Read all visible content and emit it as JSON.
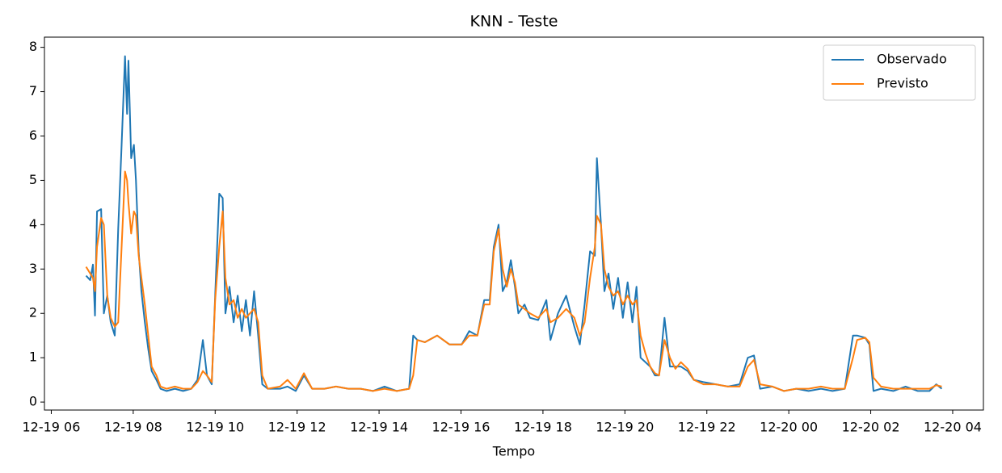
{
  "chart_data": {
    "type": "line",
    "title": "KNN - Teste",
    "xlabel": "Tempo",
    "x": [
      "12-19 06:51",
      "12-19 06:57",
      "12-19 07:01",
      "12-19 07:04",
      "12-19 07:07",
      "12-19 07:13",
      "12-19 07:17",
      "12-19 07:22",
      "12-19 07:27",
      "12-19 07:33",
      "12-19 07:38",
      "12-19 07:43",
      "12-19 07:48",
      "12-19 07:51",
      "12-19 07:53",
      "12-19 07:57",
      "12-19 08:01",
      "12-19 08:04",
      "12-19 08:08",
      "12-19 08:12",
      "12-19 08:17",
      "12-19 08:22",
      "12-19 08:27",
      "12-19 08:34",
      "12-19 08:40",
      "12-19 08:49",
      "12-19 09:01",
      "12-19 09:13",
      "12-19 09:25",
      "12-19 09:34",
      "12-19 09:42",
      "12-19 09:48",
      "12-19 09:55",
      "12-19 10:00",
      "12-19 10:06",
      "12-19 10:11",
      "12-19 10:15",
      "12-19 10:21",
      "12-19 10:27",
      "12-19 10:33",
      "12-19 10:39",
      "12-19 10:45",
      "12-19 10:51",
      "12-19 10:57",
      "12-19 11:03",
      "12-19 11:09",
      "12-19 11:17",
      "12-19 11:35",
      "12-19 11:46",
      "12-19 11:58",
      "12-19 12:10",
      "12-19 12:22",
      "12-19 12:40",
      "12-19 12:57",
      "12-19 13:15",
      "12-19 13:33",
      "12-19 13:51",
      "12-19 14:08",
      "12-19 14:26",
      "12-19 14:44",
      "12-19 14:50",
      "12-19 14:56",
      "12-19 15:07",
      "12-19 15:25",
      "12-19 15:43",
      "12-19 16:01",
      "12-19 16:12",
      "12-19 16:24",
      "12-19 16:34",
      "12-19 16:42",
      "12-19 16:48",
      "12-19 16:55",
      "12-19 17:01",
      "12-19 17:07",
      "12-19 17:13",
      "12-19 17:19",
      "12-19 17:24",
      "12-19 17:33",
      "12-19 17:41",
      "12-19 17:53",
      "12-19 18:05",
      "12-19 18:11",
      "12-19 18:22",
      "12-19 18:34",
      "12-19 18:46",
      "12-19 18:54",
      "12-19 19:01",
      "12-19 19:09",
      "12-19 19:16",
      "12-19 19:19",
      "12-19 19:25",
      "12-19 19:30",
      "12-19 19:36",
      "12-19 19:43",
      "12-19 19:50",
      "12-19 19:57",
      "12-19 20:04",
      "12-19 20:11",
      "12-19 20:17",
      "12-19 20:23",
      "12-19 20:30",
      "12-19 20:37",
      "12-19 20:44",
      "12-19 20:50",
      "12-19 20:58",
      "12-19 21:06",
      "12-19 21:14",
      "12-19 21:22",
      "12-19 21:32",
      "12-19 21:41",
      "12-19 21:55",
      "12-19 22:13",
      "12-19 22:31",
      "12-19 22:48",
      "12-19 23:00",
      "12-19 23:09",
      "12-19 23:18",
      "12-19 23:36",
      "12-19 23:53",
      "12-20 00:11",
      "12-20 00:29",
      "12-20 00:47",
      "12-20 01:04",
      "12-20 01:22",
      "12-20 01:34",
      "12-20 01:40",
      "12-20 01:52",
      "12-20 01:58",
      "12-20 02:04",
      "12-20 02:15",
      "12-20 02:33",
      "12-20 02:51",
      "12-20 03:09",
      "12-20 03:26",
      "12-20 03:36",
      "12-20 03:44"
    ],
    "series": [
      {
        "name": "Observado",
        "color": "#1f77b4",
        "values": [
          2.85,
          2.75,
          3.1,
          1.95,
          4.3,
          4.35,
          2.0,
          2.4,
          1.8,
          1.5,
          3.9,
          5.8,
          7.8,
          6.5,
          7.7,
          5.5,
          5.8,
          5.0,
          3.4,
          2.5,
          1.8,
          1.2,
          0.7,
          0.5,
          0.3,
          0.25,
          0.3,
          0.25,
          0.3,
          0.5,
          1.4,
          0.6,
          0.4,
          2.4,
          4.7,
          4.6,
          2.0,
          2.6,
          1.8,
          2.4,
          1.6,
          2.3,
          1.5,
          2.5,
          1.5,
          0.4,
          0.3,
          0.3,
          0.35,
          0.25,
          0.6,
          0.3,
          0.3,
          0.35,
          0.3,
          0.3,
          0.25,
          0.35,
          0.25,
          0.3,
          1.5,
          1.4,
          1.35,
          1.5,
          1.3,
          1.3,
          1.6,
          1.5,
          2.3,
          2.3,
          3.5,
          4.0,
          2.5,
          2.7,
          3.2,
          2.6,
          2.0,
          2.2,
          1.9,
          1.85,
          2.3,
          1.4,
          2.0,
          2.4,
          1.7,
          1.3,
          2.2,
          3.4,
          3.3,
          5.5,
          4.0,
          2.5,
          2.9,
          2.1,
          2.8,
          1.9,
          2.7,
          1.8,
          2.6,
          1.0,
          0.9,
          0.8,
          0.6,
          0.6,
          1.9,
          0.8,
          0.8,
          0.8,
          0.7,
          0.5,
          0.45,
          0.4,
          0.35,
          0.4,
          1.0,
          1.05,
          0.3,
          0.35,
          0.25,
          0.3,
          0.25,
          0.3,
          0.25,
          0.3,
          1.5,
          1.5,
          1.45,
          1.3,
          0.25,
          0.3,
          0.25,
          0.35,
          0.25,
          0.25,
          0.4,
          0.3
        ]
      },
      {
        "name": "Previsto",
        "color": "#ff7f0e",
        "values": [
          3.05,
          2.9,
          2.8,
          2.5,
          3.5,
          4.15,
          4.0,
          2.4,
          1.9,
          1.7,
          1.8,
          3.5,
          5.2,
          5.0,
          4.5,
          3.8,
          4.3,
          4.2,
          3.3,
          2.8,
          2.2,
          1.5,
          0.8,
          0.6,
          0.35,
          0.3,
          0.35,
          0.3,
          0.3,
          0.45,
          0.7,
          0.6,
          0.45,
          2.3,
          3.5,
          4.3,
          2.8,
          2.2,
          2.3,
          1.9,
          2.1,
          1.9,
          2.0,
          2.1,
          1.8,
          0.6,
          0.3,
          0.35,
          0.5,
          0.3,
          0.65,
          0.3,
          0.3,
          0.35,
          0.3,
          0.3,
          0.25,
          0.3,
          0.25,
          0.3,
          0.6,
          1.4,
          1.35,
          1.5,
          1.3,
          1.3,
          1.5,
          1.5,
          2.2,
          2.2,
          3.4,
          3.9,
          3.0,
          2.6,
          3.0,
          2.7,
          2.2,
          2.1,
          2.0,
          1.9,
          2.1,
          1.8,
          1.9,
          2.1,
          1.9,
          1.5,
          1.8,
          2.8,
          3.5,
          4.2,
          4.0,
          3.0,
          2.6,
          2.4,
          2.5,
          2.2,
          2.4,
          2.2,
          2.3,
          1.5,
          1.1,
          0.8,
          0.65,
          0.6,
          1.4,
          1.0,
          0.75,
          0.9,
          0.75,
          0.5,
          0.4,
          0.4,
          0.35,
          0.35,
          0.8,
          0.95,
          0.4,
          0.35,
          0.25,
          0.3,
          0.3,
          0.35,
          0.3,
          0.3,
          1.0,
          1.4,
          1.45,
          1.35,
          0.55,
          0.35,
          0.3,
          0.3,
          0.3,
          0.3,
          0.38,
          0.35
        ]
      }
    ],
    "xlim": [
      "12-19 05:50",
      "12-20 04:45"
    ],
    "xticks": [
      {
        "value": "12-19 06:00",
        "label": "12-19 06"
      },
      {
        "value": "12-19 08:00",
        "label": "12-19 08"
      },
      {
        "value": "12-19 10:00",
        "label": "12-19 10"
      },
      {
        "value": "12-19 12:00",
        "label": "12-19 12"
      },
      {
        "value": "12-19 14:00",
        "label": "12-19 14"
      },
      {
        "value": "12-19 16:00",
        "label": "12-19 16"
      },
      {
        "value": "12-19 18:00",
        "label": "12-19 18"
      },
      {
        "value": "12-19 20:00",
        "label": "12-19 20"
      },
      {
        "value": "12-19 22:00",
        "label": "12-19 22"
      },
      {
        "value": "12-20 00:00",
        "label": "12-20 00"
      },
      {
        "value": "12-20 02:00",
        "label": "12-20 02"
      },
      {
        "value": "12-20 04:00",
        "label": "12-20 04"
      }
    ],
    "ylim": [
      -0.18,
      8.23
    ],
    "yticks": [
      0,
      1,
      2,
      3,
      4,
      5,
      6,
      7,
      8
    ],
    "grid": false,
    "legend": "upper right"
  }
}
